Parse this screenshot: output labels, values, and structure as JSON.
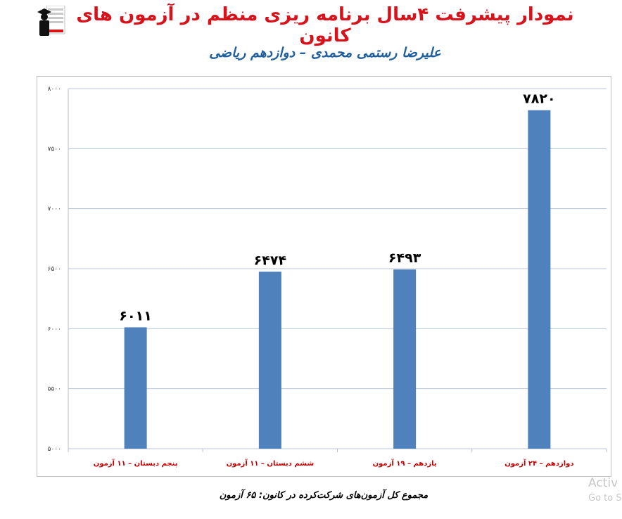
{
  "chart_data": {
    "type": "bar",
    "title": "نمودار پیشرفت ۴سال برنامه ریزی منظم در آزمون های کانون",
    "subtitle": "علیرضا رستمی محمدی – دوازدهم ریاضی",
    "categories": [
      "پنجم دبستان – ۱۱ آزمون",
      "ششم دبستان – ۱۱ آزمون",
      "یازدهم – ۱۹ آزمون",
      "دوازدهم – ۲۴ آزمون"
    ],
    "values": [
      6011,
      6474,
      6493,
      7820
    ],
    "value_labels": [
      "۶۰۱۱",
      "۶۴۷۴",
      "۶۴۹۳",
      "۷۸۲۰"
    ],
    "ylim": [
      5000,
      8000
    ],
    "yticks": [
      5000,
      5500,
      6000,
      6500,
      7000,
      7500,
      8000
    ],
    "ytick_labels": [
      "۵۰۰۰",
      "۵۵۰۰",
      "۶۰۰۰",
      "۶۵۰۰",
      "۷۰۰۰",
      "۷۵۰۰",
      "۸۰۰۰"
    ],
    "grid": true,
    "bar_color": "#4f81bd",
    "category_label_color": "#c00000",
    "xlabel": "",
    "ylabel": ""
  },
  "footer": "مجموع کل آزمون‌های شرکت‌کرده در کانون: ۶۵ آزمون",
  "watermark": {
    "line1": "Activ",
    "line2": "Go to S"
  },
  "colors": {
    "title": "#d8121b",
    "subtitle": "#1f5f9e",
    "grid": "#b8c7d9",
    "axis": "#bfbfbf"
  },
  "logo_icon": "graduate-logo-icon"
}
